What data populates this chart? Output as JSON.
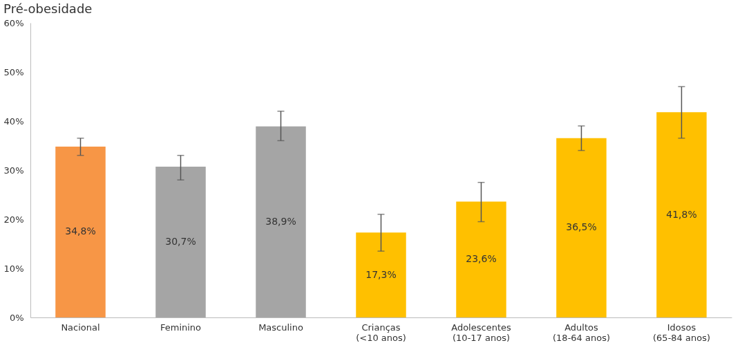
{
  "chart_data": {
    "type": "bar",
    "title": "Pré-obesidade",
    "categories": [
      "Nacional",
      "Feminino",
      "Masculino",
      "Crianças\n(<10 anos)",
      "Adolescentes\n(10-17 anos)",
      "Adultos\n(18-64 anos)",
      "Idosos\n(65-84 anos)"
    ],
    "values": [
      34.8,
      30.7,
      38.9,
      17.3,
      23.6,
      36.5,
      41.8
    ],
    "colors": [
      "#f79646",
      "#a5a5a5",
      "#a5a5a5",
      "#ffc000",
      "#ffc000",
      "#ffc000",
      "#ffc000"
    ],
    "errors": [
      [
        33,
        36.5
      ],
      [
        28,
        33
      ],
      [
        36,
        42
      ],
      [
        13.5,
        21
      ],
      [
        19.5,
        27.5
      ],
      [
        34,
        39
      ],
      [
        36.5,
        47
      ]
    ],
    "value_labels": [
      "34,8%",
      "30,7%",
      "38,9%",
      "17,3%",
      "23,6%",
      "36,5%",
      "41,8%"
    ],
    "ylim": [
      0,
      60
    ],
    "yticks": [
      {
        "value": 0,
        "label": "0%"
      },
      {
        "value": 10,
        "label": "10%"
      },
      {
        "value": 20,
        "label": "20%"
      },
      {
        "value": 30,
        "label": "30%"
      },
      {
        "value": 40,
        "label": "40%"
      },
      {
        "value": 50,
        "label": "50%"
      },
      {
        "value": 60,
        "label": "60%"
      }
    ],
    "grid": false
  }
}
